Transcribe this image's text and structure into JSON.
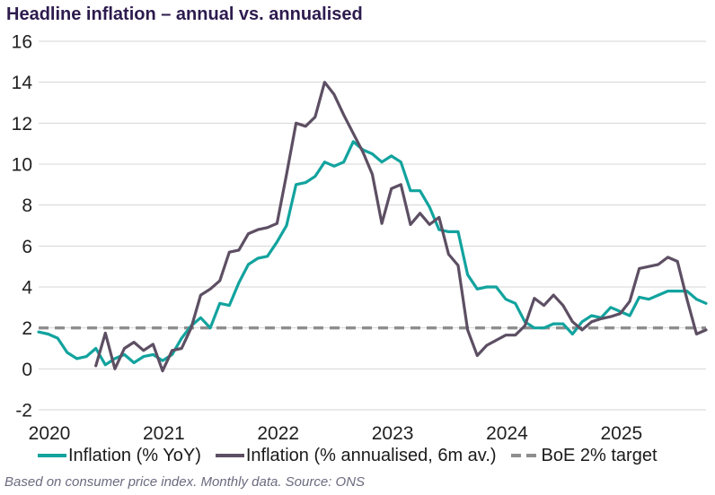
{
  "header": {
    "title": "Headline inflation – annual vs. annualised"
  },
  "footer": {
    "note": "Based on consumer price index. Monthly data. Source: ONS"
  },
  "theme": {
    "title_color": "#2d1b4e",
    "footer_color": "#6b6b80",
    "grid_color": "#d4d4d4",
    "axis_text_color": "#1f1f1f",
    "background": "#ffffff"
  },
  "chart_data": {
    "type": "line",
    "title": "Headline inflation – annual vs. annualised",
    "x_unit": "month",
    "x_range": [
      "2020-01",
      "2025-11"
    ],
    "x_tick_labels": [
      "2020",
      "2021",
      "2022",
      "2023",
      "2024",
      "2025"
    ],
    "ylim": [
      -2,
      16
    ],
    "y_ticks": [
      16,
      14,
      12,
      10,
      8,
      6,
      4,
      2,
      0,
      -2
    ],
    "grid": "horizontal",
    "legend_position": "bottom",
    "series": [
      {
        "name": "Inflation (% YoY)",
        "color": "#12a39e",
        "style": "solid",
        "start": "2020-01",
        "values": [
          1.8,
          1.7,
          1.5,
          0.8,
          0.5,
          0.6,
          1.0,
          0.2,
          0.5,
          0.7,
          0.3,
          0.6,
          0.7,
          0.4,
          0.7,
          1.5,
          2.1,
          2.5,
          2.0,
          3.2,
          3.1,
          4.2,
          5.1,
          5.4,
          5.5,
          6.2,
          7.0,
          9.0,
          9.1,
          9.4,
          10.1,
          9.9,
          10.1,
          11.1,
          10.7,
          10.5,
          10.1,
          10.4,
          10.1,
          8.7,
          8.7,
          7.9,
          6.8,
          6.7,
          6.7,
          4.6,
          3.9,
          4.0,
          4.0,
          3.4,
          3.2,
          2.3,
          2.0,
          2.0,
          2.2,
          2.2,
          1.7,
          2.3,
          2.6,
          2.5,
          3.0,
          2.8,
          2.6,
          3.5,
          3.4,
          3.6,
          3.8,
          3.8,
          3.8,
          3.4,
          3.2
        ]
      },
      {
        "name": "Inflation (% annualised, 6m av.)",
        "color": "#5d4f63",
        "style": "solid",
        "start": "2020-07",
        "values": [
          0.15,
          1.75,
          0.0,
          1.0,
          1.3,
          0.9,
          1.2,
          -0.1,
          0.9,
          1.0,
          2.0,
          3.6,
          3.9,
          4.3,
          5.7,
          5.8,
          6.6,
          6.8,
          6.9,
          7.1,
          9.5,
          12.0,
          11.85,
          12.3,
          14.0,
          13.4,
          12.4,
          11.5,
          10.6,
          9.5,
          7.1,
          8.8,
          9.0,
          7.05,
          7.6,
          7.05,
          7.4,
          5.6,
          5.05,
          1.9,
          0.65,
          1.15,
          1.4,
          1.65,
          1.65,
          2.1,
          3.45,
          3.1,
          3.6,
          3.1,
          2.3,
          1.9,
          2.3,
          2.45,
          2.55,
          2.7,
          3.3,
          4.9,
          5.0,
          5.1,
          5.45,
          5.25,
          3.4,
          1.7,
          1.9
        ]
      },
      {
        "name": "BoE 2% target",
        "color": "#8e8e8e",
        "style": "dashed",
        "constant": 2
      }
    ]
  }
}
